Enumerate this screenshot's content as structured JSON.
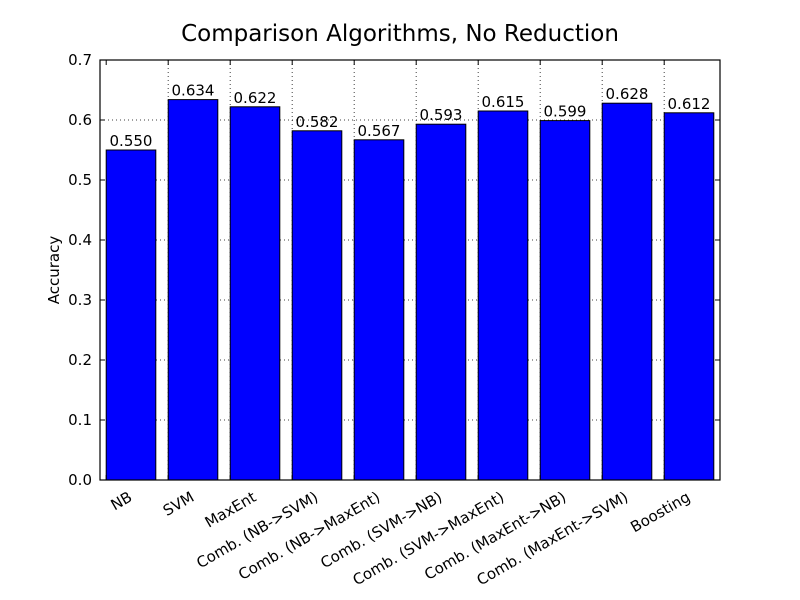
{
  "chart_data": {
    "type": "bar",
    "title": "Comparison Algorithms, No Reduction",
    "xlabel": "",
    "ylabel": "Accuracy",
    "categories": [
      "NB",
      "SVM",
      "MaxEnt",
      "Comb. (NB->SVM)",
      "Comb. (NB->MaxEnt)",
      "Comb. (SVM->NB)",
      "Comb. (SVM->MaxEnt)",
      "Comb. (MaxEnt->NB)",
      "Comb. (MaxEnt->SVM)",
      "Boosting"
    ],
    "values": [
      0.55,
      0.634,
      0.622,
      0.582,
      0.567,
      0.593,
      0.615,
      0.599,
      0.628,
      0.612
    ],
    "value_labels": [
      "0.550",
      "0.634",
      "0.622",
      "0.582",
      "0.567",
      "0.593",
      "0.615",
      "0.599",
      "0.628",
      "0.612"
    ],
    "ylim": [
      0.0,
      0.7
    ],
    "yticks": [
      0.0,
      0.1,
      0.2,
      0.3,
      0.4,
      0.5,
      0.6,
      0.7
    ],
    "ytick_labels": [
      "0.0",
      "0.1",
      "0.2",
      "0.3",
      "0.4",
      "0.5",
      "0.6",
      "0.7"
    ],
    "grid": true,
    "bar_color": "#0000ff",
    "legend": "none"
  }
}
